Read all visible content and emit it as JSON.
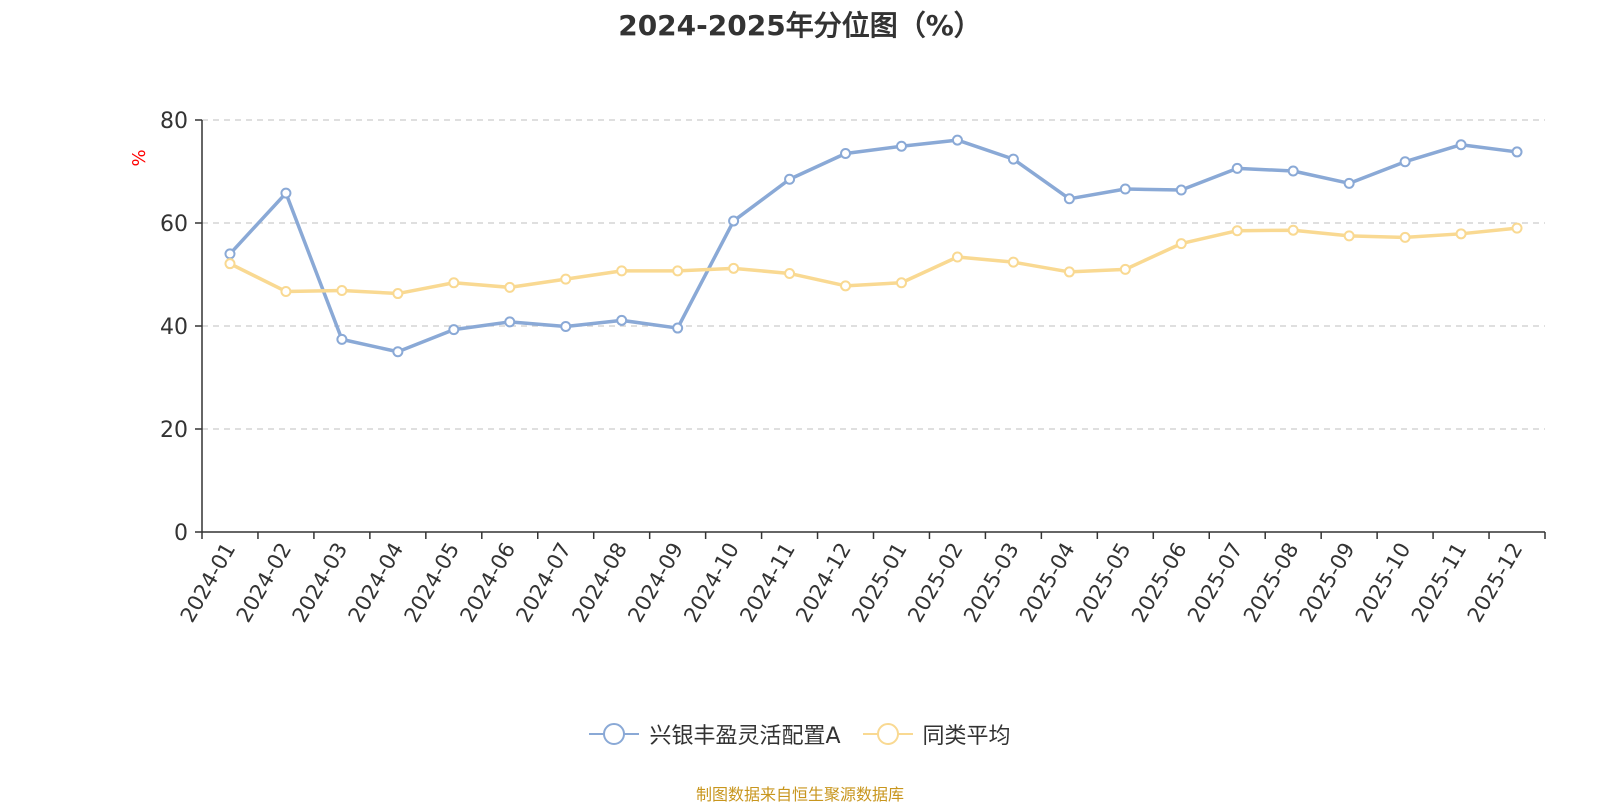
{
  "chart_data": {
    "type": "line",
    "title": "2024-2025年分位图（%）",
    "ylabel": "%",
    "xlabel": "",
    "ylim": [
      0,
      80
    ],
    "yticks": [
      0,
      20,
      40,
      60,
      80
    ],
    "grid": true,
    "legend_position": "bottom",
    "categories": [
      "2024-01",
      "2024-02",
      "2024-03",
      "2024-04",
      "2024-05",
      "2024-06",
      "2024-07",
      "2024-08",
      "2024-09",
      "2024-10",
      "2024-11",
      "2024-12",
      "2025-01",
      "2025-02",
      "2025-03",
      "2025-04",
      "2025-05",
      "2025-06",
      "2025-07",
      "2025-08",
      "2025-09",
      "2025-10",
      "2025-11",
      "2025-12"
    ],
    "series": [
      {
        "name": "兴银丰盈灵活配置A",
        "color": "#8aa9d6",
        "values": [
          54.0,
          65.8,
          37.4,
          35.0,
          39.3,
          40.8,
          39.9,
          41.1,
          39.6,
          60.4,
          68.5,
          73.5,
          74.9,
          76.1,
          72.4,
          64.7,
          66.6,
          66.4,
          70.6,
          70.1,
          67.7,
          71.9,
          75.2,
          73.8
        ]
      },
      {
        "name": "同类平均",
        "color": "#f9d992",
        "values": [
          52.1,
          46.7,
          46.9,
          46.3,
          48.4,
          47.5,
          49.1,
          50.7,
          50.7,
          51.2,
          50.2,
          47.8,
          48.4,
          53.4,
          52.4,
          50.5,
          51.0,
          56.0,
          58.5,
          58.6,
          57.5,
          57.2,
          57.9,
          59.0
        ]
      }
    ]
  },
  "source_text": "制图数据来自恒生聚源数据库"
}
